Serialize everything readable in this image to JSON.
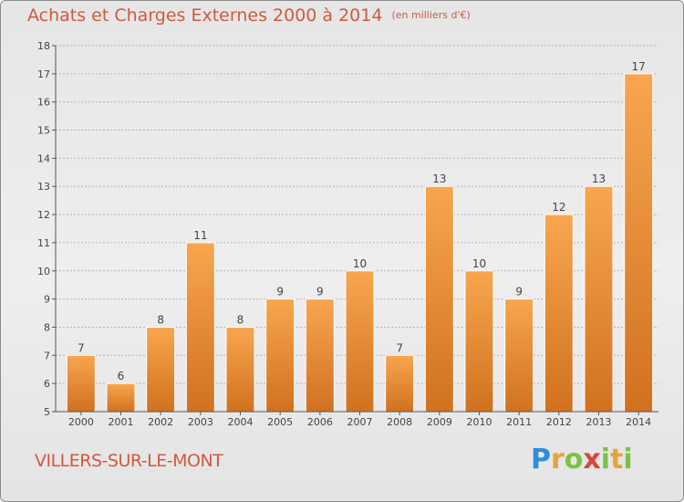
{
  "header": {
    "title": "Achats et Charges Externes 2000 à 2014",
    "unit": "(en milliers d'€)"
  },
  "footer": {
    "commune": "VILLERS-SUR-LE-MONT",
    "logo_text": "Proxiti"
  },
  "colors": {
    "title": "#d05a3c",
    "bar_light": "#f7a34c",
    "bar_dark": "#d47420"
  },
  "chart_data": {
    "type": "bar",
    "title": "Achats et Charges Externes 2000 à 2014",
    "subtitle": "(en milliers d'€)",
    "xlabel": "",
    "ylabel": "",
    "categories": [
      "2000",
      "2001",
      "2002",
      "2003",
      "2004",
      "2005",
      "2006",
      "2007",
      "2008",
      "2009",
      "2010",
      "2011",
      "2012",
      "2013",
      "2014"
    ],
    "values": [
      7,
      6,
      8,
      11,
      8,
      9,
      9,
      10,
      7,
      13,
      10,
      9,
      12,
      13,
      17
    ],
    "ylim": [
      5,
      18
    ],
    "yticks": [
      5,
      6,
      7,
      8,
      9,
      10,
      11,
      12,
      13,
      14,
      15,
      16,
      17,
      18
    ],
    "grid": true,
    "legend": "none"
  }
}
